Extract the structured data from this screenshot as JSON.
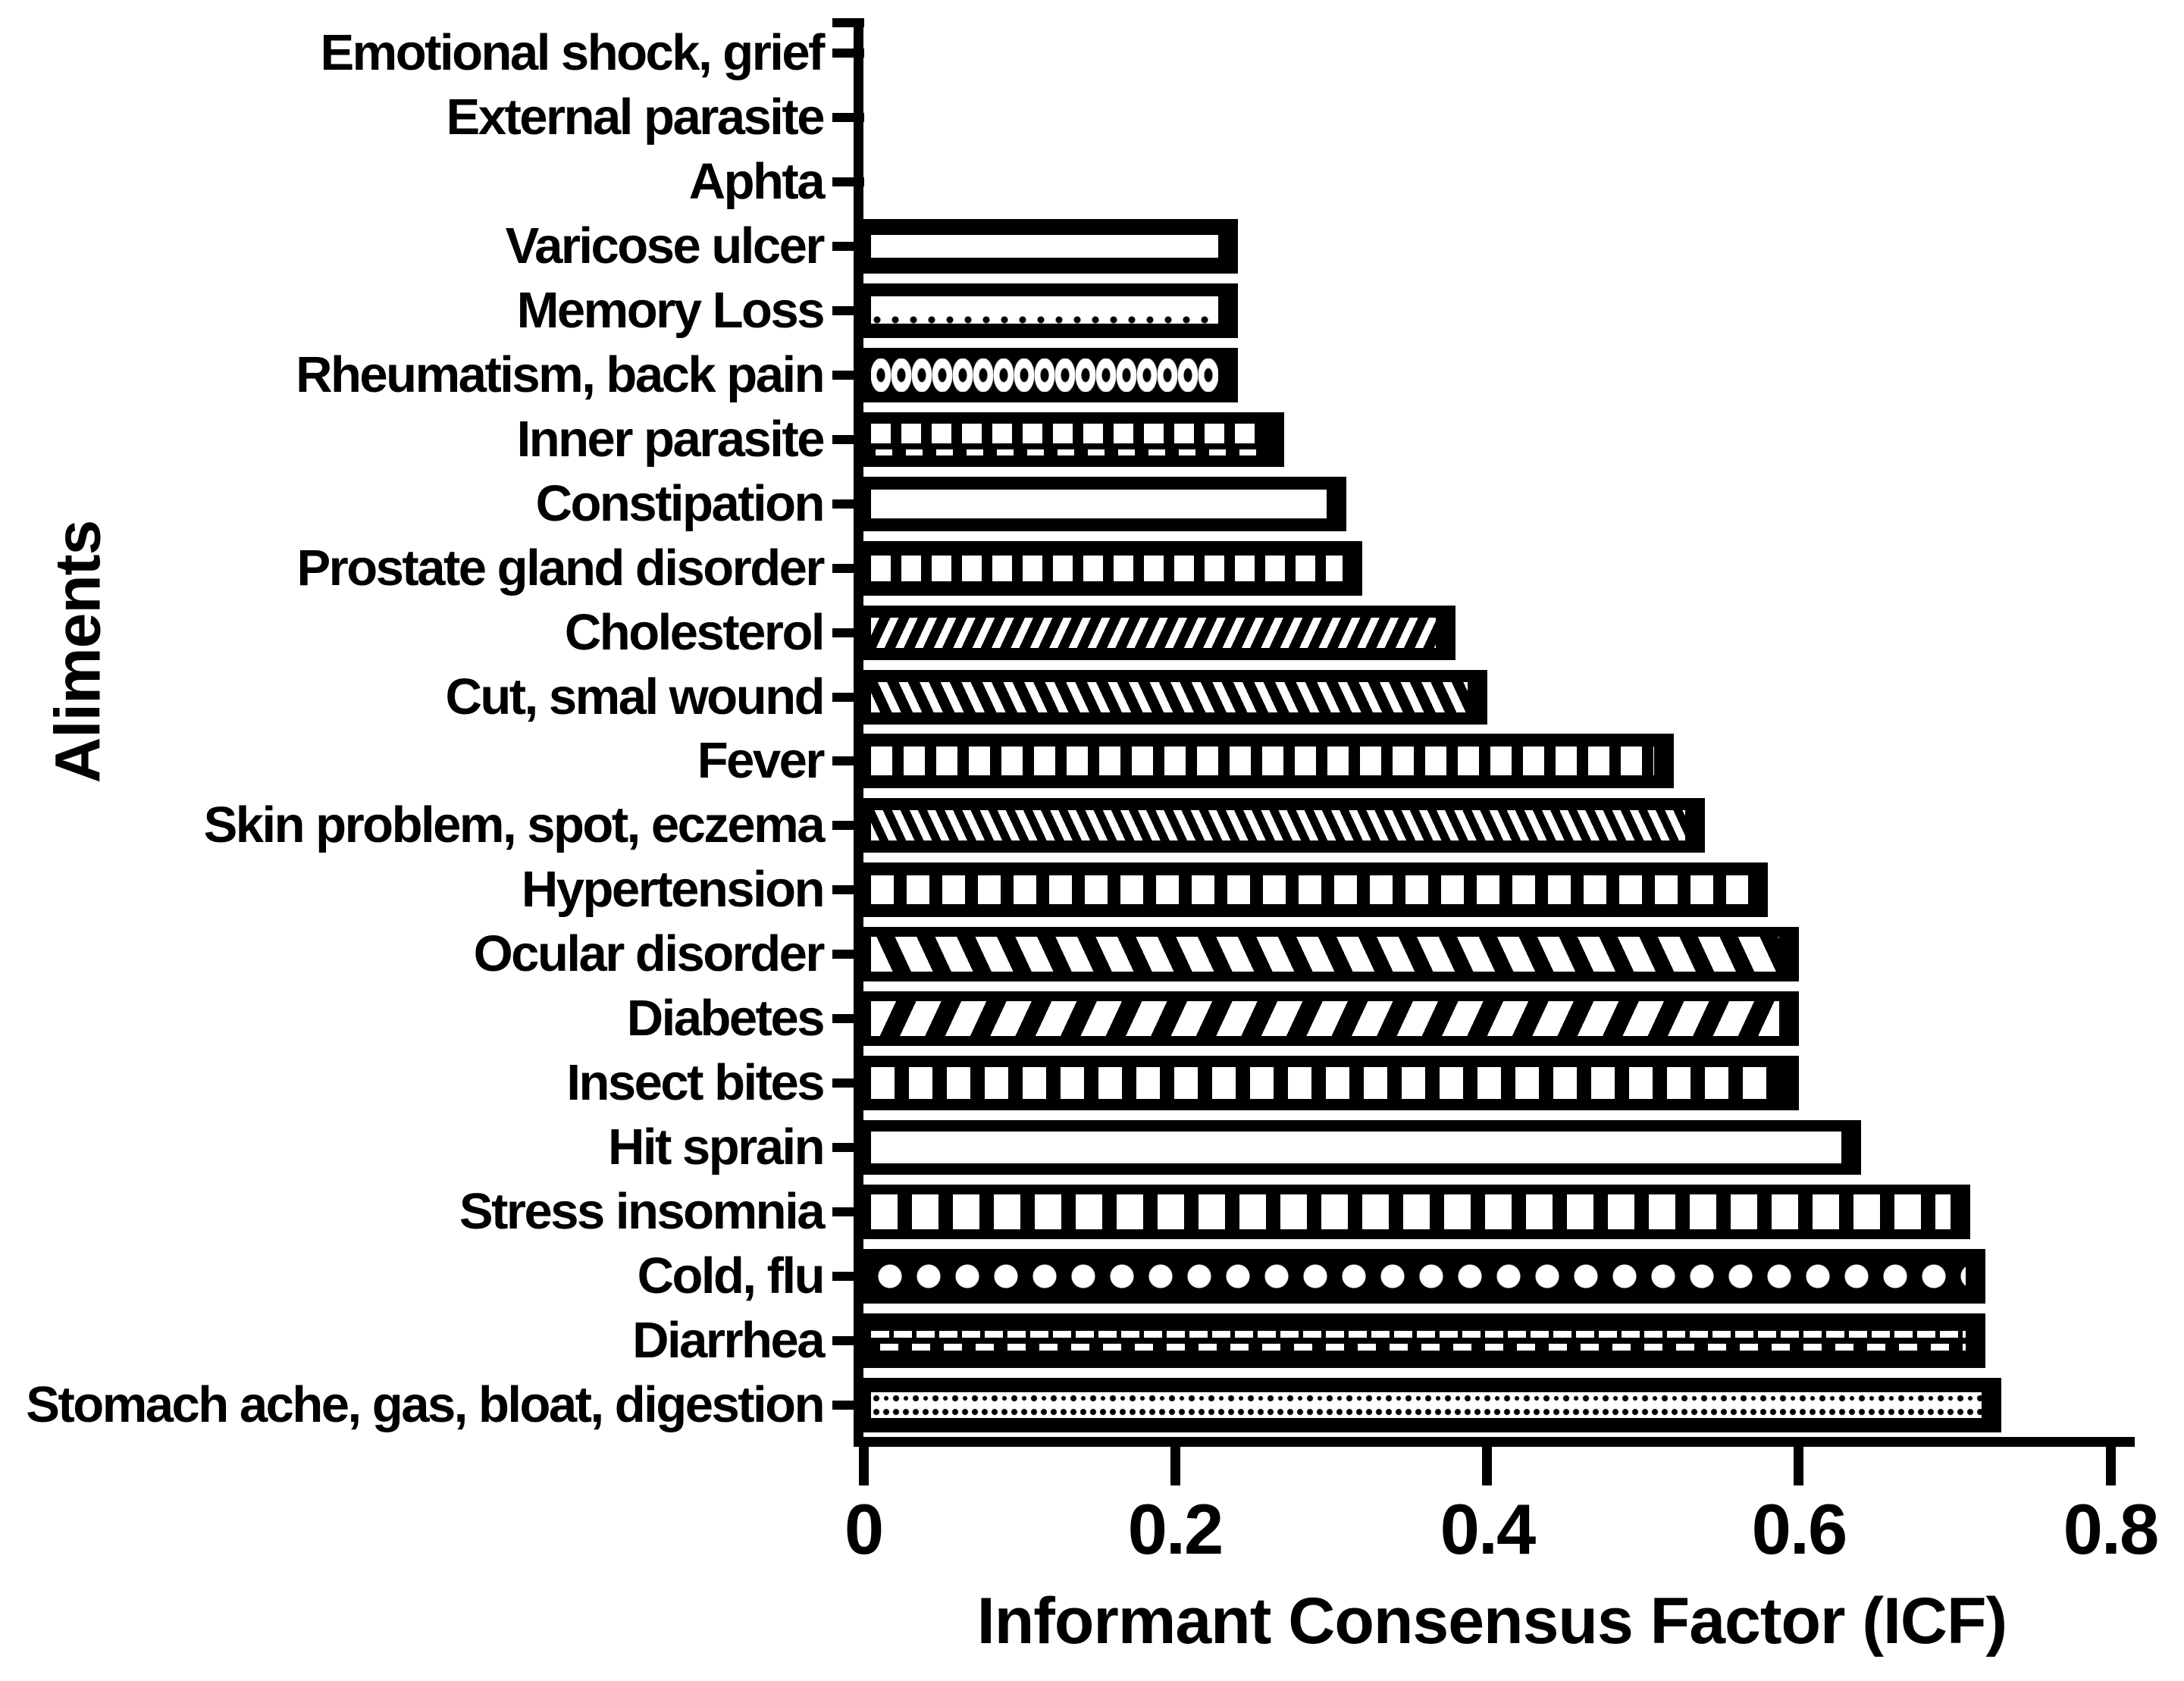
{
  "chart_data": {
    "type": "bar",
    "orientation": "horizontal",
    "xlabel": "Informant Consensus Factor (ICF)",
    "ylabel": "Aliments",
    "xlim": [
      0,
      0.8
    ],
    "xticks": [
      0,
      0.2,
      0.4,
      0.6,
      0.8
    ],
    "xtick_labels": [
      "0",
      "0.2",
      "0.4",
      "0.6",
      "0.8"
    ],
    "grid": false,
    "bar_color": "#000000",
    "background_color": "#ffffff",
    "legend": "none",
    "categories": [
      "Emotional shock, grief",
      "External parasite",
      "Aphta",
      "Varicose ulcer",
      "Memory Loss",
      "Rheumatism, back pain",
      "Inner parasite",
      "Constipation",
      "Prostate gland disorder",
      "Cholesterol",
      "Cut, smal wound",
      "Fever",
      "Skin problem, spot, eczema",
      "Hypertension",
      "Ocular disorder",
      "Diabetes",
      "Insect bites",
      "Hit sprain",
      "Stress insomnia",
      "Cold, flu",
      "Diarrhea",
      "Stomach ache, gas, bloat, digestion"
    ],
    "values": [
      0,
      0,
      0,
      0.24,
      0.24,
      0.24,
      0.27,
      0.31,
      0.32,
      0.38,
      0.4,
      0.52,
      0.54,
      0.58,
      0.6,
      0.6,
      0.6,
      0.64,
      0.71,
      0.72,
      0.72,
      0.73
    ],
    "patterns": [
      "none",
      "none",
      "none",
      "hband",
      "hband-dotted",
      "oval-rings",
      "squares-dash",
      "hband-thick",
      "squares-sm",
      "diag-fwd-thin",
      "diag-back-thin",
      "squares-md",
      "diag-back-dense",
      "squares-md2",
      "diag-back-thick",
      "diag-fwd-thick",
      "squares-lg",
      "hband-wide",
      "squares-xl",
      "hex-dots",
      "dash-rows",
      "ring-chain"
    ]
  }
}
